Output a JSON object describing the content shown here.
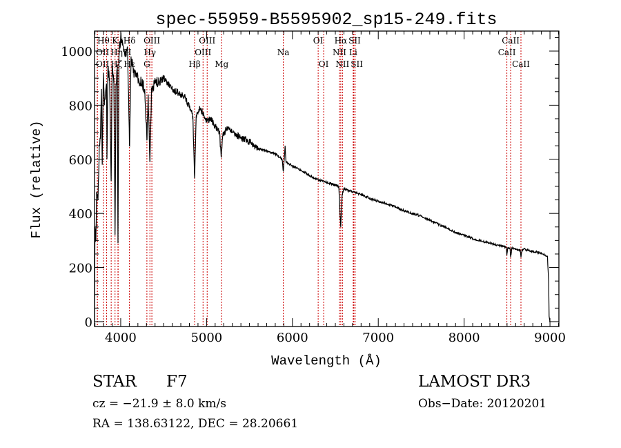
{
  "chart_data": {
    "type": "line",
    "title": "spec-55959-B5595902_sp15-249.fits",
    "xlabel": "Wavelength (Å)",
    "ylabel": "Flux (relative)",
    "xlim": [
      3695,
      9104
    ],
    "ylim": [
      -18,
      1074
    ],
    "x_ticks": [
      4000,
      5000,
      6000,
      7000,
      8000,
      9000
    ],
    "y_ticks": [
      0,
      200,
      400,
      600,
      800,
      1000
    ],
    "x_minor_step": 100,
    "y_minor_step": 50,
    "grid": false,
    "series": [
      {
        "name": "spectrum",
        "color": "#000000",
        "points": [
          [
            3695,
            0
          ],
          [
            3700,
            350
          ],
          [
            3710,
            300
          ],
          [
            3720,
            480
          ],
          [
            3735,
            450
          ],
          [
            3750,
            650
          ],
          [
            3765,
            700
          ],
          [
            3775,
            860
          ],
          [
            3785,
            580
          ],
          [
            3798,
            920
          ],
          [
            3810,
            800
          ],
          [
            3835,
            880
          ],
          [
            3840,
            600
          ],
          [
            3850,
            930
          ],
          [
            3870,
            900
          ],
          [
            3889,
            520
          ],
          [
            3900,
            950
          ],
          [
            3920,
            900
          ],
          [
            3934,
            320
          ],
          [
            3945,
            880
          ],
          [
            3960,
            950
          ],
          [
            3968,
            290
          ],
          [
            3980,
            1000
          ],
          [
            4000,
            1050
          ],
          [
            4020,
            1040
          ],
          [
            4050,
            980
          ],
          [
            4080,
            1000
          ],
          [
            4102,
            650
          ],
          [
            4120,
            980
          ],
          [
            4150,
            920
          ],
          [
            4200,
            900
          ],
          [
            4250,
            880
          ],
          [
            4280,
            860
          ],
          [
            4305,
            670
          ],
          [
            4320,
            840
          ],
          [
            4340,
            590
          ],
          [
            4360,
            860
          ],
          [
            4400,
            880
          ],
          [
            4450,
            890
          ],
          [
            4500,
            900
          ],
          [
            4550,
            880
          ],
          [
            4600,
            860
          ],
          [
            4650,
            850
          ],
          [
            4700,
            840
          ],
          [
            4750,
            830
          ],
          [
            4800,
            790
          ],
          [
            4840,
            760
          ],
          [
            4861,
            530
          ],
          [
            4880,
            760
          ],
          [
            4920,
            790
          ],
          [
            4960,
            770
          ],
          [
            5000,
            740
          ],
          [
            5050,
            750
          ],
          [
            5100,
            720
          ],
          [
            5150,
            700
          ],
          [
            5170,
            610
          ],
          [
            5190,
            690
          ],
          [
            5250,
            720
          ],
          [
            5300,
            700
          ],
          [
            5400,
            680
          ],
          [
            5500,
            665
          ],
          [
            5600,
            640
          ],
          [
            5700,
            630
          ],
          [
            5800,
            620
          ],
          [
            5880,
            600
          ],
          [
            5894,
            555
          ],
          [
            5905,
            600
          ],
          [
            5915,
            650
          ],
          [
            5925,
            590
          ],
          [
            6000,
            575
          ],
          [
            6100,
            560
          ],
          [
            6200,
            540
          ],
          [
            6300,
            525
          ],
          [
            6400,
            515
          ],
          [
            6500,
            505
          ],
          [
            6540,
            500
          ],
          [
            6563,
            350
          ],
          [
            6580,
            470
          ],
          [
            6600,
            490
          ],
          [
            6700,
            480
          ],
          [
            6800,
            470
          ],
          [
            6900,
            455
          ],
          [
            7000,
            445
          ],
          [
            7100,
            435
          ],
          [
            7200,
            425
          ],
          [
            7300,
            410
          ],
          [
            7400,
            400
          ],
          [
            7500,
            390
          ],
          [
            7600,
            375
          ],
          [
            7700,
            360
          ],
          [
            7800,
            345
          ],
          [
            7900,
            330
          ],
          [
            8000,
            318
          ],
          [
            8100,
            308
          ],
          [
            8200,
            298
          ],
          [
            8300,
            290
          ],
          [
            8400,
            282
          ],
          [
            8490,
            276
          ],
          [
            8498,
            245
          ],
          [
            8510,
            275
          ],
          [
            8535,
            272
          ],
          [
            8542,
            238
          ],
          [
            8555,
            272
          ],
          [
            8600,
            268
          ],
          [
            8655,
            262
          ],
          [
            8662,
            238
          ],
          [
            8675,
            264
          ],
          [
            8700,
            268
          ],
          [
            8800,
            260
          ],
          [
            8900,
            254
          ],
          [
            8970,
            242
          ],
          [
            8985,
            150
          ],
          [
            8990,
            20
          ],
          [
            9000,
            0
          ]
        ]
      }
    ],
    "line_color": "#cc0000",
    "lines": [
      {
        "name": "OII",
        "wl": 3727,
        "row": 2
      },
      {
        "name": "OII",
        "wl": 3729,
        "row": 3
      },
      {
        "name": "Hθ",
        "wl": 3798,
        "row": 1
      },
      {
        "name": "Hη",
        "wl": 3835,
        "row": 2
      },
      {
        "name": "Hζ",
        "wl": 3889,
        "row": 3
      },
      {
        "name": "K",
        "wl": 3934,
        "row": 1
      },
      {
        "name": "H",
        "wl": 3968,
        "row": 2
      },
      {
        "name": "Hε",
        "wl": 3970,
        "row": 3
      },
      {
        "name": "Hδ",
        "wl": 4102,
        "row": 1
      },
      {
        "name": "G",
        "wl": 4305,
        "row": 3
      },
      {
        "name": "Hγ",
        "wl": 4340,
        "row": 2
      },
      {
        "name": "OIII",
        "wl": 4363,
        "row": 1
      },
      {
        "name": "Hβ",
        "wl": 4861,
        "row": 3
      },
      {
        "name": "OIII",
        "wl": 4959,
        "row": 2
      },
      {
        "name": "OIII",
        "wl": 5007,
        "row": 1
      },
      {
        "name": "Mg",
        "wl": 5175,
        "row": 3
      },
      {
        "name": "Na",
        "wl": 5894,
        "row": 2
      },
      {
        "name": "OI",
        "wl": 6300,
        "row": 1
      },
      {
        "name": "OI",
        "wl": 6364,
        "row": 3
      },
      {
        "name": "NII",
        "wl": 6548,
        "row": 2
      },
      {
        "name": "Hα",
        "wl": 6563,
        "row": 1
      },
      {
        "name": "NII",
        "wl": 6583,
        "row": 3
      },
      {
        "name": "Li",
        "wl": 6708,
        "row": 2
      },
      {
        "name": "SII",
        "wl": 6716,
        "row": 1
      },
      {
        "name": "SII",
        "wl": 6731,
        "row": 3
      },
      {
        "name": "CaII",
        "wl": 8498,
        "row": 2
      },
      {
        "name": "CaII",
        "wl": 8542,
        "row": 1
      },
      {
        "name": "CaII",
        "wl": 8662,
        "row": 3
      }
    ]
  },
  "info": {
    "object_class": "STAR",
    "subclass": "F7",
    "survey": "LAMOST DR3",
    "cz": "cz = −21.9 ± 8.0 km/s",
    "obs_date": "Obs−Date: 20120201",
    "coords": "RA = 138.63122, DEC =  28.20661"
  }
}
